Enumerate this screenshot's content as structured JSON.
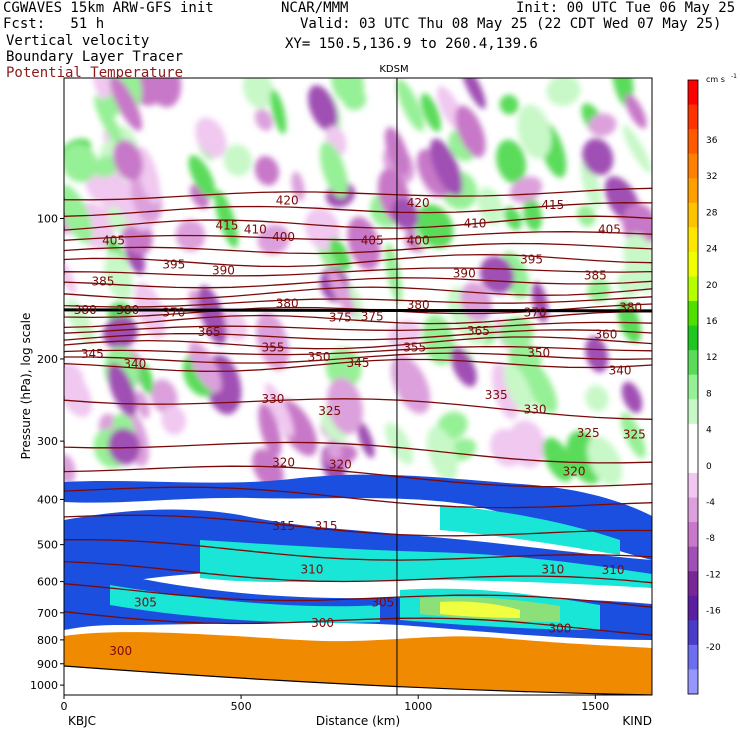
{
  "header": {
    "model": "CGWAVES 15km ARW-GFS init",
    "fcst": "Fcst:   51 h",
    "field1": "Vertical velocity",
    "field2": "Boundary Layer Tracer",
    "field3": "Potential Temperature",
    "org": "NCAR/MMM",
    "init": "Init: 00 UTC Tue 06 May 25",
    "valid": "Valid: 03 UTC Thu 08 May 25 (22 CDT Wed 07 May 25)",
    "xy": "XY= 150.5,136.9 to 260.4,139.6"
  },
  "colors": {
    "theta": "#7a0a0a",
    "field3_text": "#8b1a1a",
    "tracer_blue": "#1a4fe0",
    "tracer_cyan": "#19e6d6",
    "ground_orange": "#f08a00"
  },
  "chart_data": {
    "type": "heatmap",
    "xlabel": "Distance (km)",
    "ylabel": "Pressure (hPa), log scale",
    "xlim": [
      0,
      1660
    ],
    "ylim": [
      1050,
      50
    ],
    "x_ticks": [
      "0",
      "500",
      "1000",
      "1500"
    ],
    "x_tick_values": [
      0,
      500,
      1000,
      1500
    ],
    "y_ticks": [
      "100",
      "200",
      "300",
      "400",
      "500",
      "600",
      "700",
      "800",
      "900",
      "1000"
    ],
    "y_tick_values": [
      100,
      200,
      300,
      400,
      500,
      600,
      700,
      800,
      900,
      1000
    ],
    "left_station": "KBJC",
    "right_station": "KIND",
    "marker_station": "KDSM",
    "marker_distance": 940,
    "colorbar": {
      "unit": "cm s",
      "unit_exp": "-1",
      "labels": [
        "36",
        "32",
        "28",
        "24",
        "20",
        "16",
        "12",
        "8",
        "4",
        "0",
        "-4",
        "-8",
        "-12",
        "-16",
        "-20"
      ],
      "colors": [
        "#ff0000",
        "#ff3300",
        "#ff5a00",
        "#ff8000",
        "#ffa000",
        "#ffc400",
        "#ffe600",
        "#f0ff00",
        "#b4ff00",
        "#50e000",
        "#1ec81e",
        "#5adc5a",
        "#96f096",
        "#c8f8c8",
        "#ffffff",
        "#ffffff",
        "#f0c8f0",
        "#dca0dc",
        "#c878c8",
        "#a050b4",
        "#782896",
        "#5a1ea0",
        "#4a3cc8",
        "#6e6ef0",
        "#9696ff"
      ]
    },
    "theta_labels": [
      {
        "x": 630,
        "p": 92,
        "label": "420"
      },
      {
        "x": 1000,
        "p": 93,
        "label": "420"
      },
      {
        "x": 460,
        "p": 104,
        "label": "415"
      },
      {
        "x": 1380,
        "p": 94,
        "label": "415"
      },
      {
        "x": 140,
        "p": 112,
        "label": "405"
      },
      {
        "x": 620,
        "p": 110,
        "label": "400"
      },
      {
        "x": 870,
        "p": 112,
        "label": "405"
      },
      {
        "x": 540,
        "p": 106,
        "label": "410"
      },
      {
        "x": 1160,
        "p": 103,
        "label": "410"
      },
      {
        "x": 1540,
        "p": 106,
        "label": "405"
      },
      {
        "x": 1000,
        "p": 112,
        "label": "400"
      },
      {
        "x": 310,
        "p": 126,
        "label": "395"
      },
      {
        "x": 1320,
        "p": 123,
        "label": "395"
      },
      {
        "x": 450,
        "p": 130,
        "label": "390"
      },
      {
        "x": 1130,
        "p": 132,
        "label": "390"
      },
      {
        "x": 110,
        "p": 137,
        "label": "385"
      },
      {
        "x": 1500,
        "p": 133,
        "label": "385"
      },
      {
        "x": 60,
        "p": 158,
        "label": "380"
      },
      {
        "x": 180,
        "p": 158,
        "label": "380"
      },
      {
        "x": 630,
        "p": 153,
        "label": "380"
      },
      {
        "x": 1000,
        "p": 154,
        "label": "380"
      },
      {
        "x": 1600,
        "p": 156,
        "label": "380"
      },
      {
        "x": 310,
        "p": 160,
        "label": "370"
      },
      {
        "x": 780,
        "p": 164,
        "label": "375"
      },
      {
        "x": 870,
        "p": 163,
        "label": "375"
      },
      {
        "x": 1330,
        "p": 160,
        "label": "370"
      },
      {
        "x": 410,
        "p": 176,
        "label": "365"
      },
      {
        "x": 1170,
        "p": 175,
        "label": "365"
      },
      {
        "x": 1530,
        "p": 178,
        "label": "360"
      },
      {
        "x": 590,
        "p": 190,
        "label": "355"
      },
      {
        "x": 990,
        "p": 190,
        "label": "355"
      },
      {
        "x": 80,
        "p": 196,
        "label": "345"
      },
      {
        "x": 200,
        "p": 206,
        "label": "340"
      },
      {
        "x": 720,
        "p": 199,
        "label": "350"
      },
      {
        "x": 830,
        "p": 205,
        "label": "345"
      },
      {
        "x": 1340,
        "p": 195,
        "label": "350"
      },
      {
        "x": 1570,
        "p": 213,
        "label": "340"
      },
      {
        "x": 590,
        "p": 245,
        "label": "330"
      },
      {
        "x": 1220,
        "p": 240,
        "label": "335"
      },
      {
        "x": 1330,
        "p": 258,
        "label": "330"
      },
      {
        "x": 750,
        "p": 260,
        "label": "325"
      },
      {
        "x": 1480,
        "p": 290,
        "label": "325"
      },
      {
        "x": 1610,
        "p": 292,
        "label": "325"
      },
      {
        "x": 620,
        "p": 335,
        "label": "320"
      },
      {
        "x": 780,
        "p": 338,
        "label": "320"
      },
      {
        "x": 1440,
        "p": 350,
        "label": "320"
      },
      {
        "x": 620,
        "p": 458,
        "label": "315"
      },
      {
        "x": 740,
        "p": 458,
        "label": "315"
      },
      {
        "x": 700,
        "p": 568,
        "label": "310"
      },
      {
        "x": 1380,
        "p": 568,
        "label": "310"
      },
      {
        "x": 1550,
        "p": 570,
        "label": "310"
      },
      {
        "x": 230,
        "p": 668,
        "label": "305"
      },
      {
        "x": 900,
        "p": 668,
        "label": "305"
      },
      {
        "x": 730,
        "p": 740,
        "label": "300"
      },
      {
        "x": 1400,
        "p": 760,
        "label": "300"
      },
      {
        "x": 160,
        "p": 850,
        "label": "300"
      }
    ]
  }
}
